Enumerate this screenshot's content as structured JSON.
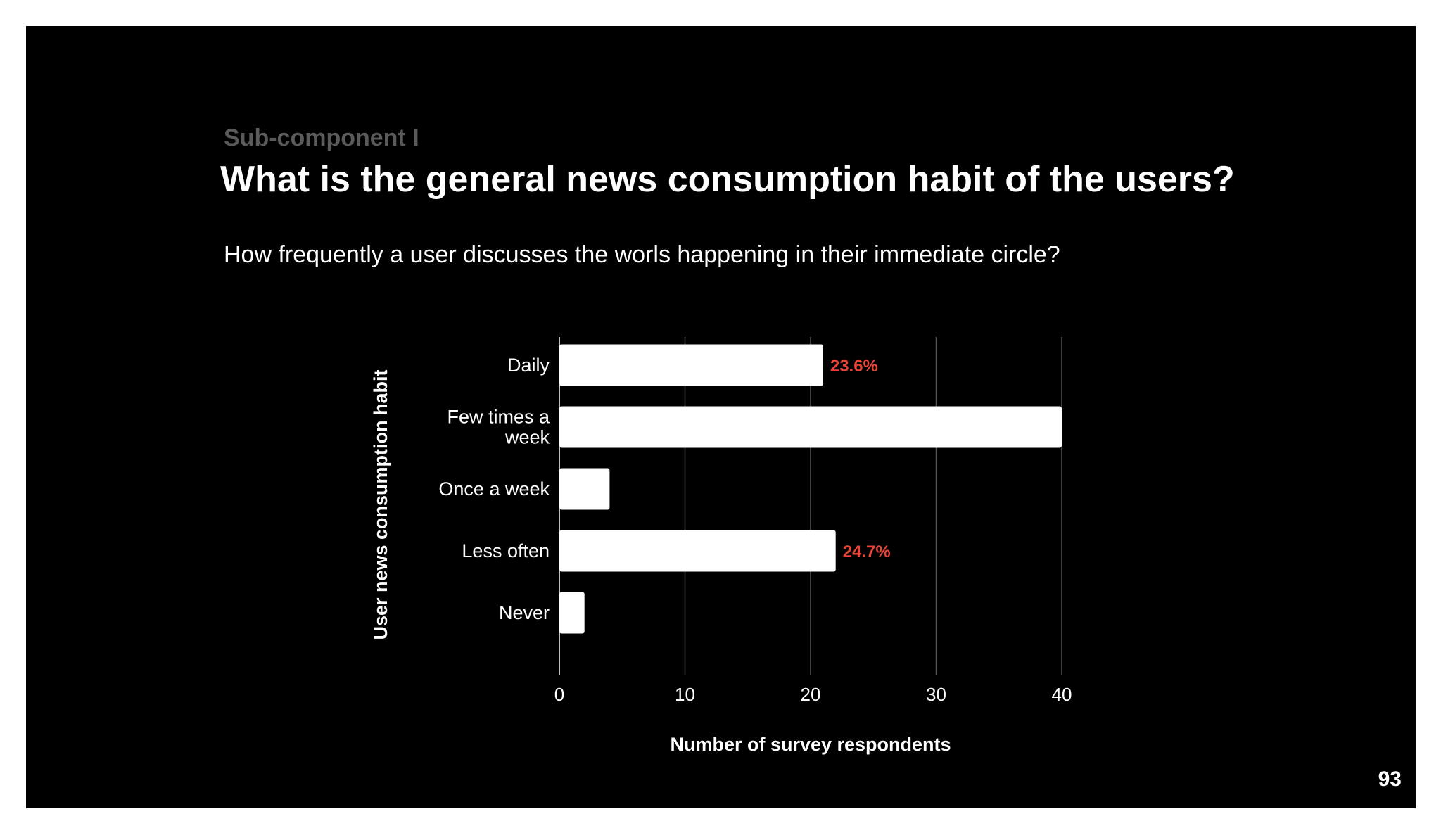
{
  "slide": {
    "eyebrow": "Sub-component I",
    "title": "What is the general news consumption habit of the users?",
    "question": "How frequently a user discusses the worls happening in their immediate circle?",
    "page_number": "93"
  },
  "colors": {
    "background": "#000000",
    "bar": "#ffffff",
    "gridline": "#555555",
    "annotation": "#e8443a",
    "text": "#ffffff"
  },
  "chart_data": {
    "type": "bar",
    "orientation": "horizontal",
    "categories": [
      [
        "Daily"
      ],
      [
        "Few times a",
        "week"
      ],
      [
        "Once a week"
      ],
      [
        "Less often"
      ],
      [
        "Never"
      ]
    ],
    "values": [
      21,
      40,
      4,
      22,
      2
    ],
    "annotations": [
      "23.6%",
      "",
      "",
      "24.7%",
      ""
    ],
    "xlabel": "Number of survey respondents",
    "ylabel": "User news consumption habit",
    "xlim": [
      0,
      40
    ],
    "xticks": [
      0,
      10,
      20,
      30,
      40
    ],
    "grid": "vertical"
  }
}
